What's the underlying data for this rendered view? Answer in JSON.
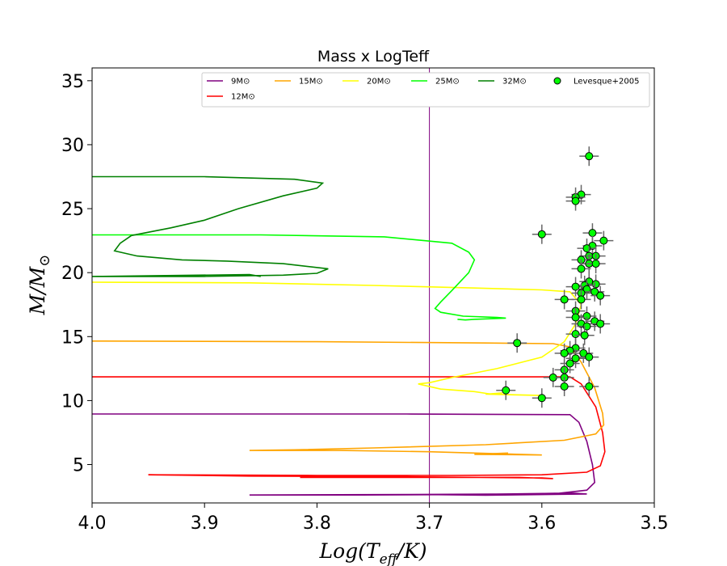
{
  "chart_data": {
    "type": "line",
    "title": "Mass x LogTeff",
    "xlabel": "Log(T_eff/K)",
    "ylabel": "M/M_⊙",
    "xlim": [
      4.0,
      3.5
    ],
    "ylim": [
      2.0,
      36.0
    ],
    "x_inverted": true,
    "xticks": [
      4.0,
      3.9,
      3.8,
      3.7,
      3.6,
      3.5
    ],
    "xtick_labels": [
      "4.0",
      "3.9",
      "3.8",
      "3.7",
      "3.6",
      "3.5"
    ],
    "yticks": [
      5,
      10,
      15,
      20,
      25,
      30,
      35
    ],
    "ytick_labels": [
      "5",
      "10",
      "15",
      "20",
      "25",
      "30",
      "35"
    ],
    "grid": false,
    "legend_position": "top",
    "vertical_line": {
      "x": 3.7,
      "color": "#800080"
    },
    "series": [
      {
        "name": "9M⊙",
        "label_main": "9M",
        "color": "#800080",
        "points": [
          [
            4.0,
            8.95
          ],
          [
            3.72,
            8.95
          ],
          [
            3.575,
            8.9
          ],
          [
            3.567,
            8.3
          ],
          [
            3.56,
            6.8
          ],
          [
            3.555,
            5.0
          ],
          [
            3.553,
            3.6
          ],
          [
            3.56,
            3.0
          ],
          [
            3.585,
            2.75
          ],
          [
            3.68,
            2.65
          ],
          [
            3.76,
            2.62
          ],
          [
            3.86,
            2.62
          ],
          [
            3.75,
            2.65
          ],
          [
            3.62,
            2.7
          ],
          [
            3.575,
            2.78
          ],
          [
            3.56,
            2.7
          ],
          [
            3.65,
            2.6
          ],
          [
            3.7,
            2.65
          ]
        ]
      },
      {
        "name": "12M⊙",
        "label_main": "12M",
        "color": "#ff0000",
        "points": [
          [
            4.0,
            11.85
          ],
          [
            3.76,
            11.85
          ],
          [
            3.6,
            11.85
          ],
          [
            3.575,
            11.85
          ],
          [
            3.565,
            11.3
          ],
          [
            3.552,
            9.5
          ],
          [
            3.546,
            7.5
          ],
          [
            3.544,
            6.0
          ],
          [
            3.548,
            4.9
          ],
          [
            3.56,
            4.4
          ],
          [
            3.6,
            4.2
          ],
          [
            3.68,
            4.15
          ],
          [
            3.8,
            4.15
          ],
          [
            3.95,
            4.2
          ],
          [
            3.86,
            4.1
          ],
          [
            3.72,
            4.05
          ],
          [
            3.6,
            3.95
          ],
          [
            3.59,
            3.9
          ],
          [
            3.62,
            4.0
          ],
          [
            3.815,
            4.0
          ]
        ]
      },
      {
        "name": "15M⊙",
        "label_main": "15M",
        "color": "#ffa500",
        "points": [
          [
            4.0,
            14.65
          ],
          [
            3.8,
            14.6
          ],
          [
            3.65,
            14.5
          ],
          [
            3.59,
            14.45
          ],
          [
            3.575,
            14.2
          ],
          [
            3.565,
            13.0
          ],
          [
            3.553,
            11.0
          ],
          [
            3.546,
            9.0
          ],
          [
            3.545,
            8.1
          ],
          [
            3.552,
            7.4
          ],
          [
            3.58,
            6.9
          ],
          [
            3.65,
            6.55
          ],
          [
            3.75,
            6.3
          ],
          [
            3.82,
            6.15
          ],
          [
            3.86,
            6.1
          ],
          [
            3.78,
            6.1
          ],
          [
            3.7,
            6.0
          ],
          [
            3.6,
            5.75
          ],
          [
            3.66,
            5.8
          ],
          [
            3.63,
            5.9
          ]
        ]
      },
      {
        "name": "20M⊙",
        "label_main": "20M",
        "color": "#ffff00",
        "points": [
          [
            4.0,
            19.25
          ],
          [
            3.86,
            19.2
          ],
          [
            3.75,
            19.0
          ],
          [
            3.66,
            18.8
          ],
          [
            3.6,
            18.65
          ],
          [
            3.575,
            18.5
          ],
          [
            3.565,
            17.5
          ],
          [
            3.57,
            16.0
          ],
          [
            3.58,
            14.6
          ],
          [
            3.6,
            13.4
          ],
          [
            3.64,
            12.5
          ],
          [
            3.68,
            11.8
          ],
          [
            3.7,
            11.4
          ],
          [
            3.71,
            11.3
          ],
          [
            3.69,
            10.9
          ],
          [
            3.66,
            10.7
          ],
          [
            3.645,
            10.5
          ],
          [
            3.6,
            10.4
          ],
          [
            3.65,
            10.5
          ],
          [
            3.635,
            10.6
          ]
        ]
      },
      {
        "name": "25M⊙",
        "label_main": "25M",
        "color": "#00ff00",
        "points": [
          [
            4.0,
            22.95
          ],
          [
            3.85,
            22.95
          ],
          [
            3.74,
            22.8
          ],
          [
            3.68,
            22.3
          ],
          [
            3.665,
            21.6
          ],
          [
            3.66,
            21.0
          ],
          [
            3.665,
            20.0
          ],
          [
            3.68,
            18.6
          ],
          [
            3.69,
            17.7
          ],
          [
            3.695,
            17.2
          ],
          [
            3.69,
            16.9
          ],
          [
            3.67,
            16.6
          ],
          [
            3.64,
            16.5
          ],
          [
            3.632,
            16.45
          ],
          [
            3.66,
            16.35
          ],
          [
            3.668,
            16.3
          ],
          [
            3.675,
            16.35
          ]
        ]
      },
      {
        "name": "32M⊙",
        "label_main": "32M",
        "color": "#008000",
        "points": [
          [
            4.0,
            27.5
          ],
          [
            3.9,
            27.5
          ],
          [
            3.82,
            27.3
          ],
          [
            3.795,
            27.0
          ],
          [
            3.8,
            26.6
          ],
          [
            3.83,
            26.0
          ],
          [
            3.87,
            25.0
          ],
          [
            3.9,
            24.1
          ],
          [
            3.93,
            23.5
          ],
          [
            3.965,
            22.9
          ],
          [
            3.975,
            22.3
          ],
          [
            3.98,
            21.7
          ],
          [
            3.96,
            21.3
          ],
          [
            3.92,
            21.0
          ],
          [
            3.88,
            20.9
          ],
          [
            3.83,
            20.7
          ],
          [
            3.79,
            20.3
          ],
          [
            3.8,
            19.95
          ],
          [
            3.83,
            19.8
          ],
          [
            3.9,
            19.7
          ],
          [
            4.0,
            19.7
          ],
          [
            3.86,
            19.85
          ],
          [
            3.85,
            19.7
          ]
        ]
      },
      {
        "name": "Levesque+2005",
        "label_main": "Levesque+2005",
        "color": "#00ff00",
        "type": "scatter",
        "points": [
          [
            3.558,
            29.1
          ],
          [
            3.565,
            26.1
          ],
          [
            3.57,
            25.9
          ],
          [
            3.57,
            25.6
          ],
          [
            3.6,
            23.0
          ],
          [
            3.555,
            23.1
          ],
          [
            3.545,
            22.5
          ],
          [
            3.555,
            22.1
          ],
          [
            3.56,
            21.9
          ],
          [
            3.558,
            21.3
          ],
          [
            3.552,
            21.3
          ],
          [
            3.565,
            21.0
          ],
          [
            3.558,
            20.7
          ],
          [
            3.552,
            20.7
          ],
          [
            3.565,
            20.3
          ],
          [
            3.558,
            19.3
          ],
          [
            3.552,
            19.1
          ],
          [
            3.562,
            19.0
          ],
          [
            3.57,
            18.9
          ],
          [
            3.56,
            18.7
          ],
          [
            3.553,
            18.5
          ],
          [
            3.548,
            18.2
          ],
          [
            3.565,
            18.4
          ],
          [
            3.58,
            17.9
          ],
          [
            3.565,
            17.9
          ],
          [
            3.57,
            17.0
          ],
          [
            3.56,
            16.6
          ],
          [
            3.57,
            16.5
          ],
          [
            3.565,
            16.0
          ],
          [
            3.553,
            16.2
          ],
          [
            3.548,
            16.0
          ],
          [
            3.56,
            15.8
          ],
          [
            3.57,
            15.2
          ],
          [
            3.562,
            15.1
          ],
          [
            3.622,
            14.5
          ],
          [
            3.57,
            14.1
          ],
          [
            3.575,
            13.9
          ],
          [
            3.58,
            13.7
          ],
          [
            3.563,
            13.7
          ],
          [
            3.57,
            13.3
          ],
          [
            3.558,
            13.4
          ],
          [
            3.575,
            12.9
          ],
          [
            3.58,
            12.4
          ],
          [
            3.59,
            11.8
          ],
          [
            3.58,
            11.8
          ],
          [
            3.58,
            11.1
          ],
          [
            3.558,
            11.1
          ],
          [
            3.632,
            10.8
          ],
          [
            3.6,
            10.2
          ]
        ]
      }
    ]
  }
}
